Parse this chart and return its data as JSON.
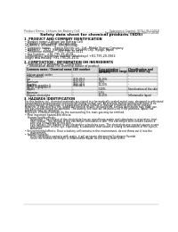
{
  "bg_color": "#ffffff",
  "header_left": "Product Name: Lithium Ion Battery Cell",
  "header_right_line1": "Substance Control: SDS-LIB-00018",
  "header_right_line2": "Establishment / Revision: Dec.7.2018",
  "title": "Safety data sheet for chemical products (SDS)",
  "section1_title": "1. PRODUCT AND COMPANY IDENTIFICATION",
  "section1_bullets": [
    "Product name: Lithium Ion Battery Cell",
    "Product code: Cylindrical-type cell",
    "    (4VB6001, 4VH86501, 4VH 86500A)",
    "Company name:    Sanyo Electric Co., Ltd., Mobile Energy Company",
    "Address:    2021  Kamitakatsuro, Sunonm City, Hyogo, Japan",
    "Telephone number:   +81-795-20-4111",
    "Fax number:  +81-795-26-4129",
    "Emergency telephone number (Weekdays) +81-795-20-3962",
    "                                  (Night and holiday) +81-795-26-4131"
  ],
  "section2_title": "2. COMPOSITION / INFORMATION ON INGREDIENTS",
  "section2_sub": "Substance or preparation: Preparation",
  "section2_info": "Information about the chemical nature of product:",
  "table_headers": [
    "Common name / Chemical name",
    "CAS number",
    "Concentration /\nConcentration range\n(50-80%)",
    "Classification and\nhazard labeling"
  ],
  "table_rows": [
    [
      "Lithium metal oxides\n(LiMn-CoNiO4)",
      "-",
      "-",
      "-"
    ],
    [
      "Iron",
      "7439-89-6",
      "15-25%",
      "-"
    ],
    [
      "Aluminum",
      "7429-90-5",
      "2-6%",
      "-"
    ],
    [
      "Graphite\n(black in graphite-I)\n(A70n in graphite-I)",
      "7782-42-5\n7782-42-5",
      "10-20%",
      "-"
    ],
    [
      "Copper",
      "-",
      "5-10%",
      "Sensitization of the skin"
    ],
    [
      "Separator",
      "-",
      "1-5%",
      "-"
    ],
    [
      "Organic electrolyte",
      "-",
      "10-25%",
      "Inflammable liquid"
    ]
  ],
  "section3_title": "3. HAZARDS IDENTIFICATION",
  "section3_para1": "For this battery cell, chemical materials are stored in a hermetically sealed metal case, designed to withstand",
  "section3_para2": "temperatures and pressures encountered during normal use. As a result, during normal use, there is no",
  "section3_para3": "physical danger of explosion or evaporation and no release or leakage of battery electrolyte leakage.",
  "section3_para4": "However, if exposed to a fire, added mechanical shocks, decomposed, serious aberrations may raise use.",
  "section3_para5": "the gas release cannot be operated. The battery cell case will be punctured if the particles, liquid-flow",
  "section3_para6": "materials may be released.",
  "section3_para7": "Moreover, if heated strongly by the surrounding fire, toxic gas may be emitted.",
  "s3b1": "Most important hazard and effects:",
  "s3b2": "Human health effects:",
  "s3b3a": "Inhalation: The release of the electrolyte has an anesthesia action and stimulates a respiratory tract.",
  "s3b3b": "Skin contact: The release of the electrolyte stimulates a skin. The electrolyte skin contact causes a",
  "s3b3c": "sore and stimulation on the skin.",
  "s3b3d": "Eye contact: The release of the electrolyte stimulates eyes. The electrolyte eye contact causes a sore",
  "s3b3e": "and stimulation on the eye. Especially, a substance that causes a strong inflammation of the eyes is",
  "s3b3f": "contained.",
  "s3b4a": "Environmental effects: Once a battery cell remains in the environment, do not throw out it into the",
  "s3b4b": "environment.",
  "s3b5": "Specific hazards:",
  "s3b5a": "If the electrolyte contacts with water, it will generate detrimental hydrogen fluoride.",
  "s3b5b": "Since the heated electrolyte is inflammable liquid, do not bring close to fire."
}
